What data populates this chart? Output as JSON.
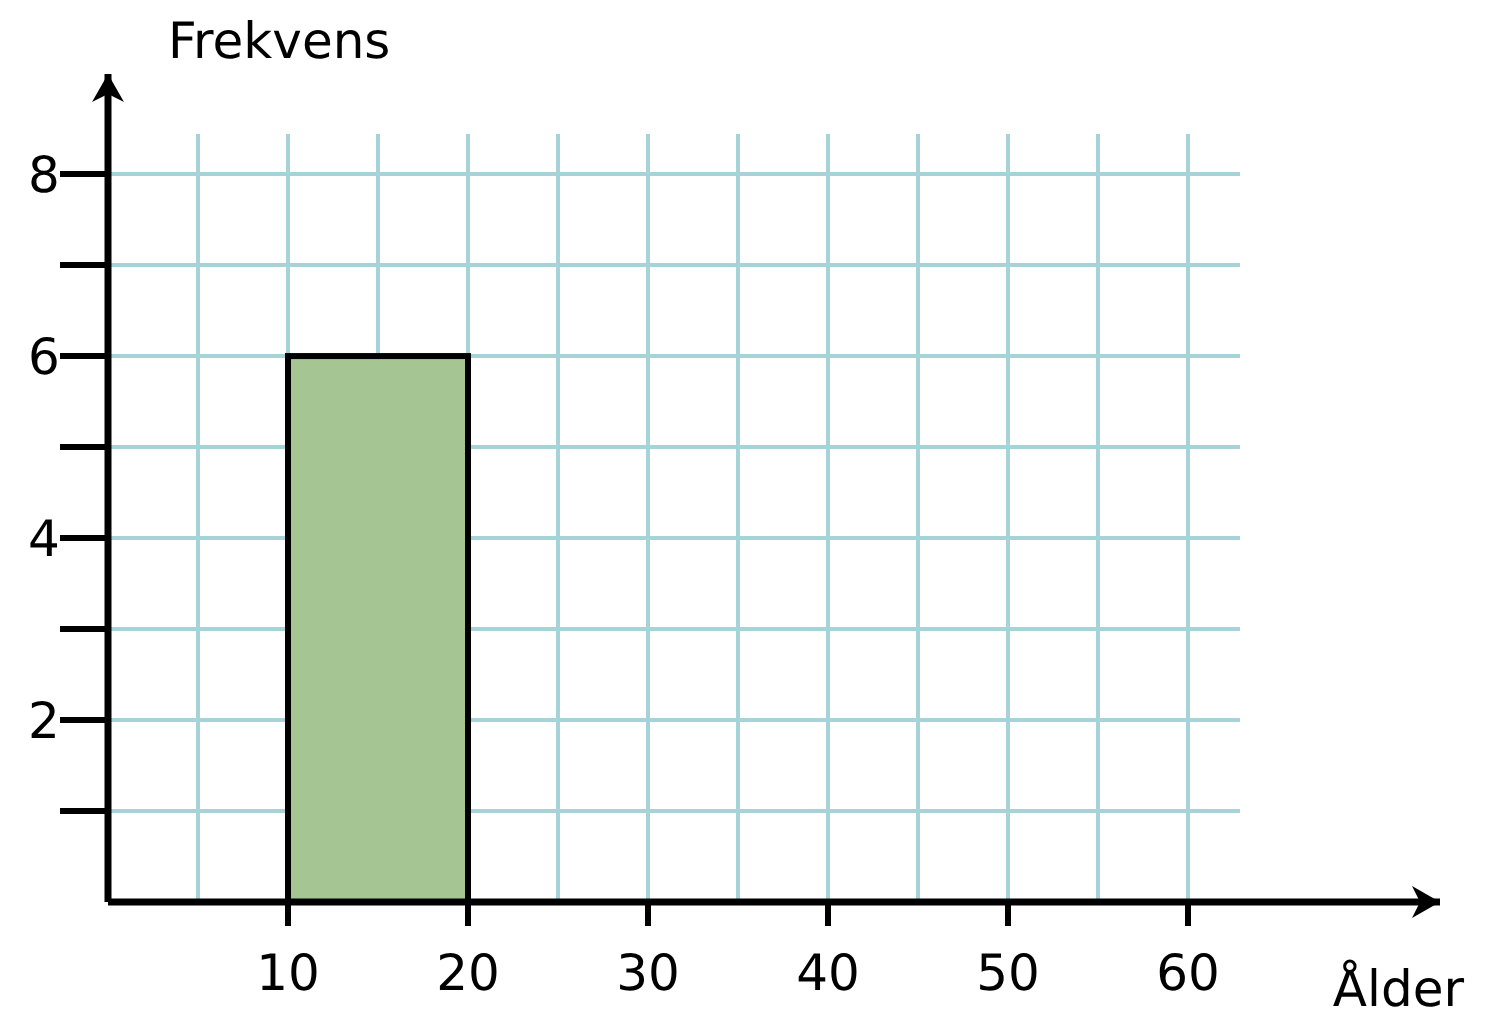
{
  "chart_data": {
    "type": "histogram",
    "xlabel": "Ålder",
    "ylabel": "Frekvens",
    "bins": [
      10,
      20
    ],
    "values": [
      6
    ],
    "color": "#a5c693",
    "xlim": [
      0,
      74
    ],
    "xticks": [
      {
        "value": 5,
        "label": null
      },
      10,
      {
        "value": 15,
        "label": null
      },
      20,
      {
        "value": 25,
        "label": null
      },
      30,
      {
        "value": 35,
        "label": null
      },
      40,
      {
        "value": 45,
        "label": null
      },
      50,
      {
        "value": 55,
        "label": null
      },
      60
    ],
    "ylim": [
      0,
      9.1
    ],
    "yticks": [
      {
        "value": 1,
        "label": null
      },
      2,
      {
        "value": 3,
        "label": null
      },
      4,
      {
        "value": 5,
        "label": null
      },
      6,
      {
        "value": 7,
        "label": null
      },
      8
    ],
    "grid": true
  }
}
